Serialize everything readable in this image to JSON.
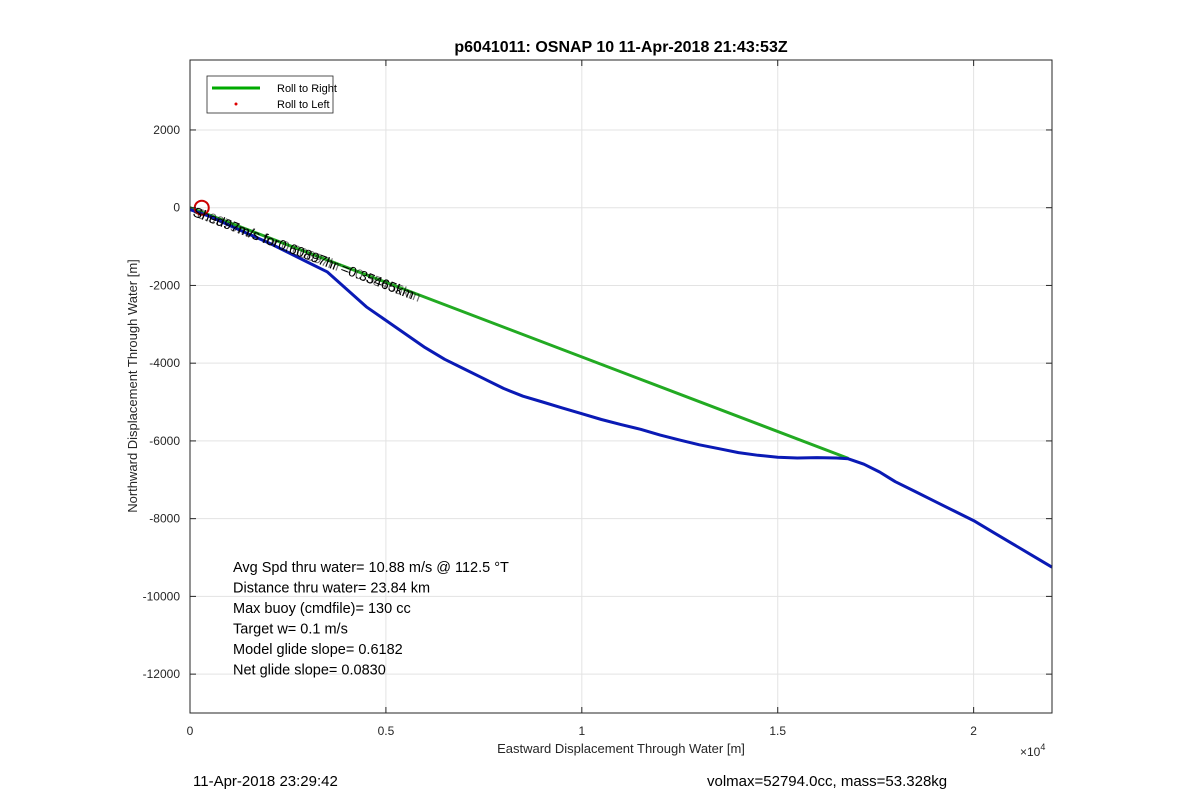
{
  "chart_data": {
    "type": "line",
    "title": "p6041011: OSNAP 10 11-Apr-2018 21:43:53Z",
    "xlabel": "Eastward Displacement Through Water [m]",
    "ylabel": "Northward Displacement Through Water [m]",
    "xlim": [
      0,
      22000
    ],
    "ylim": [
      -13000,
      3800
    ],
    "x_ticks": [
      0,
      5000,
      10000,
      15000,
      20000
    ],
    "x_tick_labels": [
      "0",
      "0.5",
      "1",
      "1.5",
      "2"
    ],
    "x_exponent_label": "×10",
    "x_exponent_power": "4",
    "y_ticks": [
      2000,
      0,
      -2000,
      -4000,
      -6000,
      -8000,
      -10000,
      -12000
    ],
    "y_tick_labels": [
      "2000",
      "0",
      "-2000",
      "-4000",
      "-6000",
      "-8000",
      "-10000",
      "-12000"
    ],
    "grid": true,
    "legend_placement": "top-left",
    "legend": [
      {
        "name": "Roll to Right",
        "style": "line",
        "color": "#00aa00"
      },
      {
        "name": "Roll to Left",
        "style": "dot",
        "color": "#dd0000"
      }
    ],
    "series": [
      {
        "name": "Roll to Right",
        "color": "#22aa22",
        "x": [
          0,
          16800
        ],
        "y": [
          0,
          -6450
        ]
      },
      {
        "color": "#0a1ab5",
        "x": [
          0,
          500,
          1000,
          1500,
          2000,
          2500,
          3000,
          3500,
          4000,
          4500,
          5000,
          5500,
          6000,
          6500,
          7000,
          7500,
          8000,
          8500,
          9000,
          9500,
          10000,
          10500,
          11000,
          11500,
          12000,
          12500,
          13000,
          13500,
          14000,
          14500,
          15000,
          15500,
          16000,
          16500,
          16800,
          17200,
          17600,
          18000,
          18500,
          19000,
          19500,
          20000,
          20500,
          21000,
          21500,
          22000
        ],
        "y": [
          -50,
          -220,
          -450,
          -680,
          -900,
          -1150,
          -1400,
          -1650,
          -2100,
          -2550,
          -2900,
          -3250,
          -3600,
          -3900,
          -4150,
          -4400,
          -4650,
          -4850,
          -5000,
          -5150,
          -5300,
          -5450,
          -5580,
          -5700,
          -5850,
          -5980,
          -6100,
          -6200,
          -6300,
          -6370,
          -6420,
          -6440,
          -6430,
          -6440,
          -6460,
          -6600,
          -6800,
          -7050,
          -7300,
          -7550,
          -7800,
          -8050,
          -8350,
          -8650,
          -8950,
          -9250
        ]
      }
    ],
    "start_marker": {
      "x": 300,
      "y": 0,
      "color": "#cc0000"
    },
    "annotation_line": "-8.9979m/s for 0.60897hr = 0.35465km",
    "annotation_text": "Shed97m/s for0.60897hr =0.35465km",
    "stats_lines": [
      "Avg Spd thru water= 10.88 m/s @ 112.5 °T",
      "Distance thru water= 23.84 km",
      "Max buoy (cmdfile)= 130 cc",
      "Target w= 0.1 m/s",
      "Model glide slope= 0.6182",
      "Net glide slope= 0.0830"
    ]
  },
  "footer": {
    "left": "11-Apr-2018 23:29:42",
    "right": "volmax=52794.0cc, mass=53.328kg"
  }
}
